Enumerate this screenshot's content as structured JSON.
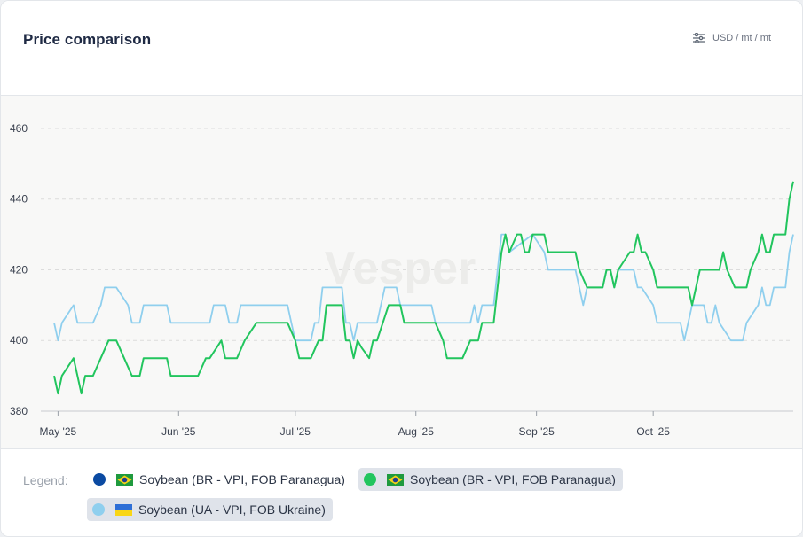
{
  "header": {
    "title": "Price comparison",
    "unit_label": "USD / mt / mt",
    "unit_icon": "sliders-icon"
  },
  "watermark": "Vesper",
  "legend": {
    "label": "Legend:",
    "items": [
      {
        "name": "Soybean (BR - VPI, FOB Paranagua)",
        "color": "#0b4aa2",
        "flag": "brazil",
        "active": false
      },
      {
        "name": "Soybean (BR - VPI, FOB Paranagua)",
        "color": "#22c55e",
        "flag": "brazil",
        "active": true
      },
      {
        "name": "Soybean (UA - VPI, FOB Ukraine)",
        "color": "#8fcfee",
        "flag": "ukraine",
        "active": true
      }
    ]
  },
  "chart_data": {
    "type": "line",
    "title": "Price comparison",
    "xlabel": "",
    "ylabel": "USD / mt / mt",
    "ylim": [
      380,
      465
    ],
    "yticks": [
      380,
      400,
      420,
      440,
      460
    ],
    "xlim": [
      "2025-05-01",
      "2025-10-31"
    ],
    "xticks": [
      {
        "date": "2025-05-01",
        "label": "May '25"
      },
      {
        "date": "2025-06-01",
        "label": "Jun '25"
      },
      {
        "date": "2025-07-01",
        "label": "Jul '25"
      },
      {
        "date": "2025-08-01",
        "label": "Aug '25"
      },
      {
        "date": "2025-09-01",
        "label": "Sep '25"
      },
      {
        "date": "2025-10-01",
        "label": "Oct '25"
      }
    ],
    "grid": "horizontal dashed",
    "series": [
      {
        "name": "Soybean (BR - VPI, FOB Paranagua)",
        "color": "#22c55e",
        "points": [
          [
            "2025-04-30",
            390
          ],
          [
            "2025-05-01",
            385
          ],
          [
            "2025-05-02",
            390
          ],
          [
            "2025-05-05",
            395
          ],
          [
            "2025-05-07",
            385
          ],
          [
            "2025-05-08",
            390
          ],
          [
            "2025-05-10",
            390
          ],
          [
            "2025-05-12",
            395
          ],
          [
            "2025-05-14",
            400
          ],
          [
            "2025-05-16",
            400
          ],
          [
            "2025-05-18",
            395
          ],
          [
            "2025-05-20",
            390
          ],
          [
            "2025-05-22",
            390
          ],
          [
            "2025-05-23",
            395
          ],
          [
            "2025-05-29",
            395
          ],
          [
            "2025-05-30",
            390
          ],
          [
            "2025-06-06",
            390
          ],
          [
            "2025-06-08",
            395
          ],
          [
            "2025-06-09",
            395
          ],
          [
            "2025-06-12",
            400
          ],
          [
            "2025-06-13",
            395
          ],
          [
            "2025-06-16",
            395
          ],
          [
            "2025-06-18",
            400
          ],
          [
            "2025-06-21",
            405
          ],
          [
            "2025-06-29",
            405
          ],
          [
            "2025-07-01",
            400
          ],
          [
            "2025-07-02",
            395
          ],
          [
            "2025-07-05",
            395
          ],
          [
            "2025-07-07",
            400
          ],
          [
            "2025-07-08",
            400
          ],
          [
            "2025-07-09",
            410
          ],
          [
            "2025-07-13",
            410
          ],
          [
            "2025-07-14",
            400
          ],
          [
            "2025-07-15",
            400
          ],
          [
            "2025-07-16",
            395
          ],
          [
            "2025-07-17",
            400
          ],
          [
            "2025-07-18",
            398
          ],
          [
            "2025-07-20",
            395
          ],
          [
            "2025-07-21",
            400
          ],
          [
            "2025-07-22",
            400
          ],
          [
            "2025-07-25",
            410
          ],
          [
            "2025-07-28",
            410
          ],
          [
            "2025-07-29",
            405
          ],
          [
            "2025-08-06",
            405
          ],
          [
            "2025-08-08",
            400
          ],
          [
            "2025-08-09",
            395
          ],
          [
            "2025-08-13",
            395
          ],
          [
            "2025-08-15",
            400
          ],
          [
            "2025-08-17",
            400
          ],
          [
            "2025-08-18",
            405
          ],
          [
            "2025-08-21",
            405
          ],
          [
            "2025-08-23",
            425
          ],
          [
            "2025-08-24",
            430
          ],
          [
            "2025-08-25",
            425
          ],
          [
            "2025-08-27",
            430
          ],
          [
            "2025-08-28",
            430
          ],
          [
            "2025-08-29",
            425
          ],
          [
            "2025-08-30",
            425
          ],
          [
            "2025-08-31",
            430
          ],
          [
            "2025-09-03",
            430
          ],
          [
            "2025-09-04",
            425
          ],
          [
            "2025-09-11",
            425
          ],
          [
            "2025-09-12",
            420
          ],
          [
            "2025-09-14",
            415
          ],
          [
            "2025-09-18",
            415
          ],
          [
            "2025-09-19",
            420
          ],
          [
            "2025-09-20",
            420
          ],
          [
            "2025-09-21",
            415
          ],
          [
            "2025-09-22",
            420
          ],
          [
            "2025-09-25",
            425
          ],
          [
            "2025-09-26",
            425
          ],
          [
            "2025-09-27",
            430
          ],
          [
            "2025-09-28",
            425
          ],
          [
            "2025-09-29",
            425
          ],
          [
            "2025-10-01",
            420
          ],
          [
            "2025-10-02",
            415
          ],
          [
            "2025-10-10",
            415
          ],
          [
            "2025-10-11",
            410
          ],
          [
            "2025-10-12",
            415
          ],
          [
            "2025-10-13",
            420
          ],
          [
            "2025-10-18",
            420
          ],
          [
            "2025-10-19",
            425
          ],
          [
            "2025-10-20",
            420
          ],
          [
            "2025-10-22",
            415
          ],
          [
            "2025-10-25",
            415
          ],
          [
            "2025-10-26",
            420
          ],
          [
            "2025-10-28",
            425
          ],
          [
            "2025-10-29",
            430
          ],
          [
            "2025-10-30",
            425
          ],
          [
            "2025-10-31",
            425
          ],
          [
            "2025-11-01",
            430
          ],
          [
            "2025-11-04",
            430
          ],
          [
            "2025-11-05",
            440
          ],
          [
            "2025-11-06",
            445
          ]
        ]
      },
      {
        "name": "Soybean (UA - VPI, FOB Ukraine)",
        "color": "#8fcfee",
        "points": [
          [
            "2025-04-30",
            405
          ],
          [
            "2025-05-01",
            400
          ],
          [
            "2025-05-02",
            405
          ],
          [
            "2025-05-05",
            410
          ],
          [
            "2025-05-06",
            405
          ],
          [
            "2025-05-10",
            405
          ],
          [
            "2025-05-12",
            410
          ],
          [
            "2025-05-13",
            415
          ],
          [
            "2025-05-16",
            415
          ],
          [
            "2025-05-19",
            410
          ],
          [
            "2025-05-20",
            405
          ],
          [
            "2025-05-22",
            405
          ],
          [
            "2025-05-23",
            410
          ],
          [
            "2025-05-29",
            410
          ],
          [
            "2025-05-30",
            405
          ],
          [
            "2025-06-09",
            405
          ],
          [
            "2025-06-10",
            410
          ],
          [
            "2025-06-13",
            410
          ],
          [
            "2025-06-14",
            405
          ],
          [
            "2025-06-16",
            405
          ],
          [
            "2025-06-17",
            410
          ],
          [
            "2025-06-29",
            410
          ],
          [
            "2025-06-30",
            405
          ],
          [
            "2025-07-01",
            400
          ],
          [
            "2025-07-05",
            400
          ],
          [
            "2025-07-06",
            405
          ],
          [
            "2025-07-07",
            405
          ],
          [
            "2025-07-08",
            415
          ],
          [
            "2025-07-13",
            415
          ],
          [
            "2025-07-14",
            405
          ],
          [
            "2025-07-15",
            405
          ],
          [
            "2025-07-16",
            400
          ],
          [
            "2025-07-17",
            405
          ],
          [
            "2025-07-22",
            405
          ],
          [
            "2025-07-24",
            415
          ],
          [
            "2025-07-27",
            415
          ],
          [
            "2025-07-28",
            410
          ],
          [
            "2025-08-05",
            410
          ],
          [
            "2025-08-06",
            405
          ],
          [
            "2025-08-15",
            405
          ],
          [
            "2025-08-16",
            410
          ],
          [
            "2025-08-17",
            405
          ],
          [
            "2025-08-18",
            410
          ],
          [
            "2025-08-21",
            410
          ],
          [
            "2025-08-22",
            420
          ],
          [
            "2025-08-23",
            430
          ],
          [
            "2025-08-24",
            430
          ],
          [
            "2025-08-25",
            425
          ],
          [
            "2025-08-31",
            430
          ],
          [
            "2025-09-03",
            425
          ],
          [
            "2025-09-04",
            420
          ],
          [
            "2025-09-11",
            420
          ],
          [
            "2025-09-13",
            410
          ],
          [
            "2025-09-14",
            415
          ],
          [
            "2025-09-18",
            415
          ],
          [
            "2025-09-19",
            420
          ],
          [
            "2025-09-20",
            420
          ],
          [
            "2025-09-21",
            415
          ],
          [
            "2025-09-22",
            420
          ],
          [
            "2025-09-26",
            420
          ],
          [
            "2025-09-27",
            415
          ],
          [
            "2025-09-28",
            415
          ],
          [
            "2025-10-01",
            410
          ],
          [
            "2025-10-02",
            405
          ],
          [
            "2025-10-08",
            405
          ],
          [
            "2025-10-09",
            400
          ],
          [
            "2025-10-11",
            410
          ],
          [
            "2025-10-14",
            410
          ],
          [
            "2025-10-15",
            405
          ],
          [
            "2025-10-16",
            405
          ],
          [
            "2025-10-17",
            410
          ],
          [
            "2025-10-18",
            405
          ],
          [
            "2025-10-21",
            400
          ],
          [
            "2025-10-24",
            400
          ],
          [
            "2025-10-25",
            405
          ],
          [
            "2025-10-28",
            410
          ],
          [
            "2025-10-29",
            415
          ],
          [
            "2025-10-30",
            410
          ],
          [
            "2025-10-31",
            410
          ],
          [
            "2025-11-01",
            415
          ],
          [
            "2025-11-04",
            415
          ],
          [
            "2025-11-05",
            425
          ],
          [
            "2025-11-06",
            430
          ]
        ]
      }
    ]
  }
}
